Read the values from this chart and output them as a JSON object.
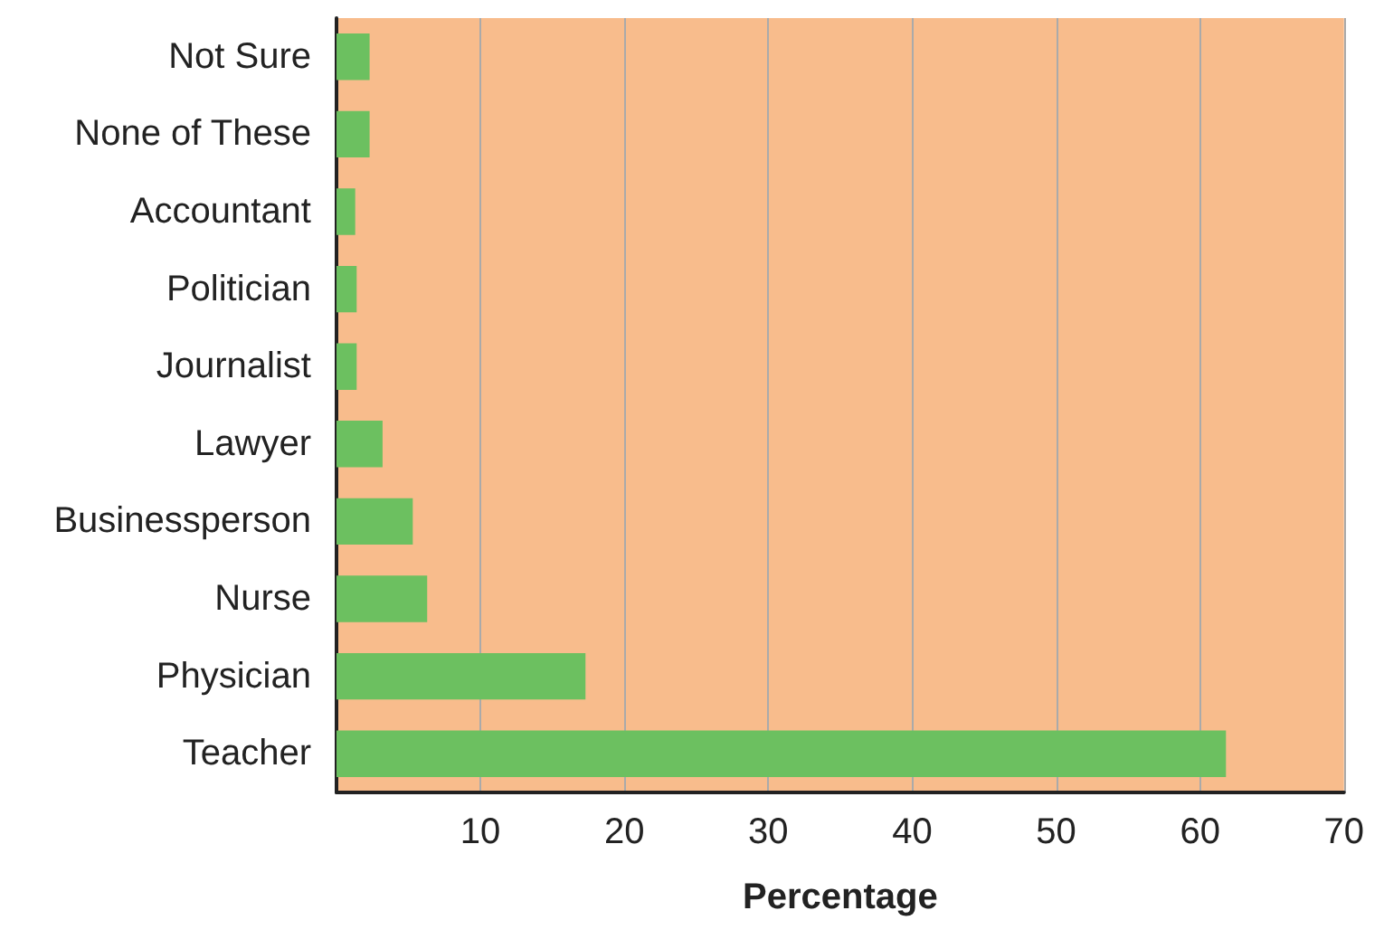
{
  "chart_data": {
    "type": "bar",
    "orientation": "horizontal",
    "xlabel": "Percentage",
    "categories": [
      "Not Sure",
      "None of These",
      "Accountant",
      "Politician",
      "Journalist",
      "Lawyer",
      "Businessperson",
      "Nurse",
      "Physician",
      "Teacher"
    ],
    "values": [
      2.3,
      2.3,
      1.3,
      1.4,
      1.4,
      3.2,
      5.3,
      6.3,
      17.3,
      61.8
    ],
    "color": "#6cc060",
    "xlim": [
      0,
      70
    ],
    "xticks": [
      10,
      20,
      30,
      40,
      50,
      60,
      70
    ],
    "grid": "x"
  }
}
